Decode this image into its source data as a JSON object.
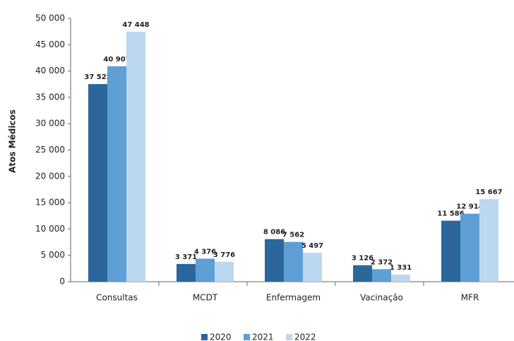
{
  "chart_data": {
    "type": "bar",
    "y_label": "Atos Médicos",
    "categories": [
      "Consultas",
      "MCDT",
      "Enfermagem",
      "Vacinação",
      "MFR"
    ],
    "series": [
      {
        "name": "2020",
        "color": "#2b679c",
        "values": [
          37522,
          3371,
          8086,
          3126,
          11586
        ],
        "value_labels": [
          "37 522",
          "3 371",
          "8 086",
          "3 126",
          "11 586"
        ]
      },
      {
        "name": "2021",
        "color": "#5e9fd6",
        "values": [
          40907,
          4376,
          7562,
          2372,
          12914
        ],
        "value_labels": [
          "40 907",
          "4 376",
          "7 562",
          "2 372",
          "12 914"
        ]
      },
      {
        "name": "2022",
        "color": "#bcd8f0",
        "values": [
          47448,
          3776,
          5497,
          1331,
          15667
        ],
        "value_labels": [
          "47 448",
          "3 776",
          "5 497",
          "1 331",
          "15 667"
        ]
      }
    ],
    "ylim": [
      0,
      50000
    ],
    "yticks": [
      0,
      {
        "value": 5000,
        "label": "5 000"
      },
      {
        "value": 10000,
        "label": "10 000"
      },
      {
        "value": 15000,
        "label": "15 000"
      },
      {
        "value": 20000,
        "label": "20 000"
      },
      {
        "value": 25000,
        "label": "25 000"
      },
      {
        "value": 30000,
        "label": "30 000"
      },
      {
        "value": 35000,
        "label": "35 000"
      },
      {
        "value": 40000,
        "label": "40 000"
      },
      {
        "value": 45000,
        "label": "45 000"
      },
      {
        "value": 50000,
        "label": "50 000"
      }
    ],
    "grid": false,
    "legend": "bottom"
  }
}
